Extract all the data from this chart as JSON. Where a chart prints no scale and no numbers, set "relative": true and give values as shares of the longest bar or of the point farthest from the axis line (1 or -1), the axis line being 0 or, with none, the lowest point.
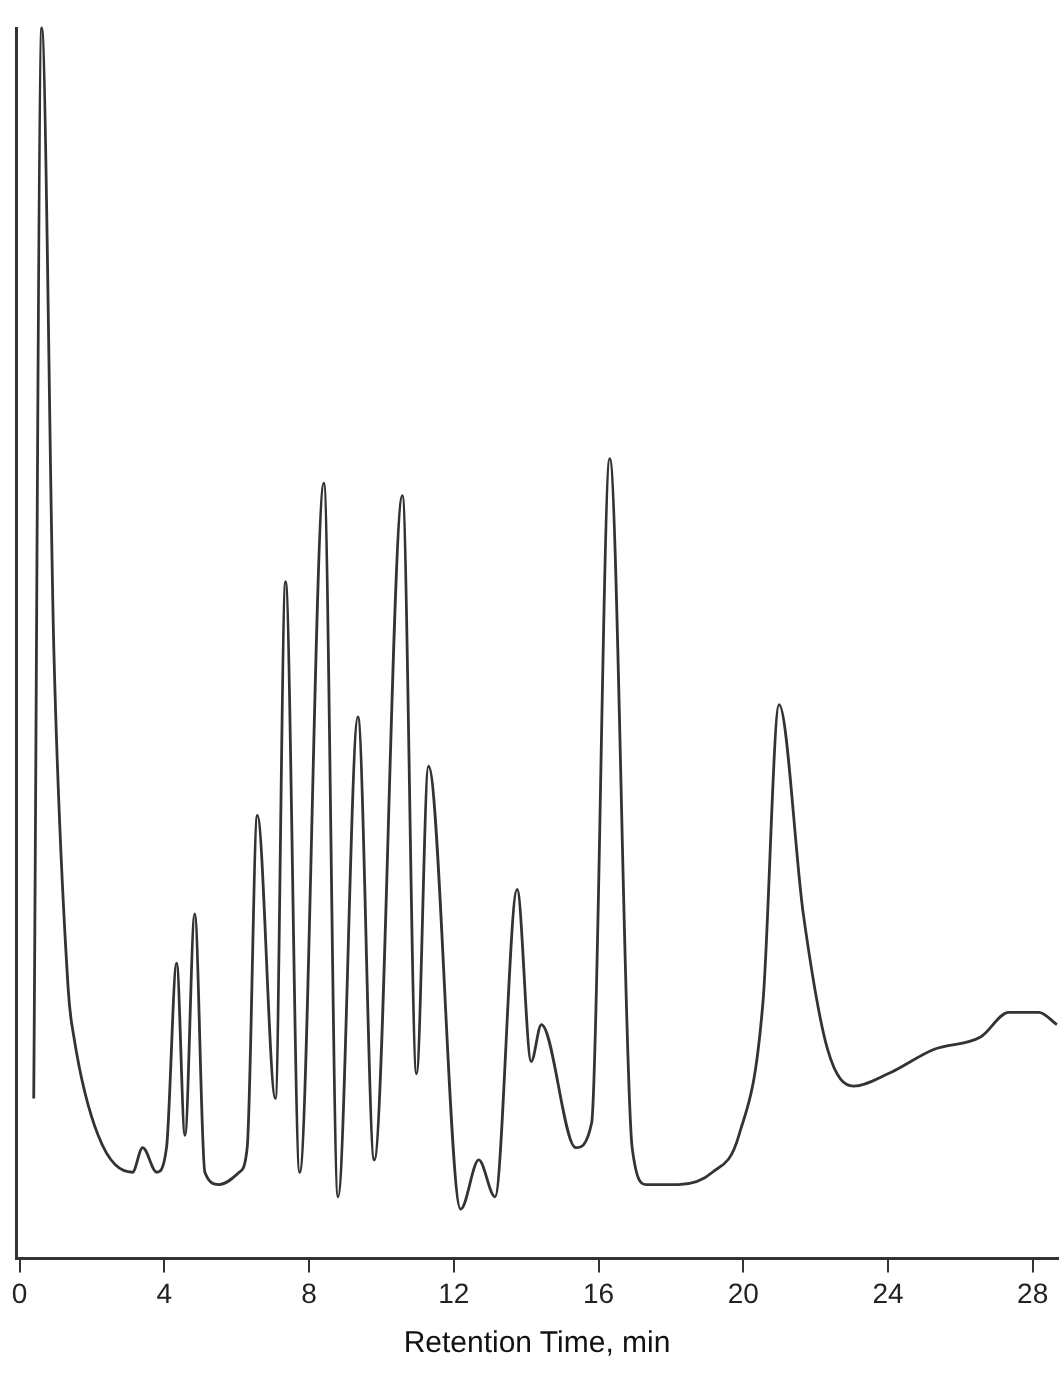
{
  "chart_data": {
    "type": "line",
    "xlabel": "Retention Time, min",
    "relative": true,
    "legend": false,
    "grid": false,
    "marker": "none",
    "line_style": "solid",
    "xlim": [
      -0.1,
      28.7
    ],
    "xticks": [
      0,
      4,
      8,
      12,
      16,
      20,
      24,
      28
    ],
    "series": [
      {
        "color": "#333333",
        "x": [
          0.39,
          0.61,
          0.95,
          1.34,
          1.5,
          2.17,
          3.12,
          3.4,
          3.79,
          4.06,
          4.34,
          4.57,
          4.84,
          5.12,
          5.51,
          6.07,
          6.29,
          6.57,
          7.07,
          7.35,
          7.74,
          8.41,
          8.8,
          9.35,
          9.8,
          10.58,
          10.97,
          11.3,
          12.19,
          12.69,
          13.14,
          13.75,
          14.14,
          14.42,
          15.37,
          15.81,
          16.31,
          16.93,
          17.32,
          18.21,
          19.15,
          19.88,
          20.55,
          20.99,
          21.66,
          22.33,
          23.05,
          24.0,
          25.28,
          26.56,
          27.34,
          28.17,
          28.67
        ],
        "values": [
          0.13,
          1.0,
          0.49,
          0.22,
          0.18,
          0.1,
          0.07,
          0.09,
          0.07,
          0.09,
          0.24,
          0.1,
          0.28,
          0.07,
          0.06,
          0.07,
          0.09,
          0.36,
          0.13,
          0.55,
          0.07,
          0.63,
          0.05,
          0.44,
          0.08,
          0.62,
          0.15,
          0.4,
          0.04,
          0.08,
          0.05,
          0.3,
          0.16,
          0.19,
          0.09,
          0.11,
          0.65,
          0.09,
          0.06,
          0.06,
          0.07,
          0.1,
          0.21,
          0.45,
          0.28,
          0.17,
          0.14,
          0.15,
          0.17,
          0.18,
          0.2,
          0.2,
          0.19
        ]
      }
    ]
  }
}
